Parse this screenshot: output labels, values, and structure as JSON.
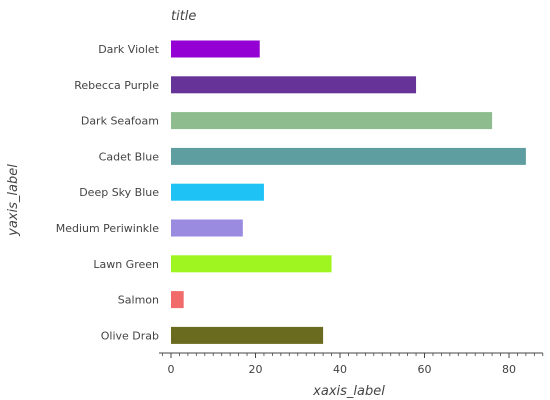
{
  "chart_data": {
    "type": "bar",
    "orientation": "horizontal",
    "title": "title",
    "xlabel": "xaxis_label",
    "ylabel": "yaxis_label",
    "xlim": [
      0,
      88
    ],
    "xticks": [
      0,
      20,
      40,
      60,
      80
    ],
    "grid": false,
    "legend": "none",
    "categories": [
      "Olive Drab",
      "Salmon",
      "Lawn Green",
      "Medium Periwinkle",
      "Deep Sky Blue",
      "Cadet Blue",
      "Dark Seafoam",
      "Rebecca Purple",
      "Dark Violet"
    ],
    "values": [
      36,
      3,
      38,
      17,
      22,
      84,
      76,
      58,
      21
    ],
    "colors": [
      "#6b6b1f",
      "#f26b6b",
      "#9ef51f",
      "#9a8ae0",
      "#1fc2f5",
      "#5f9ea0",
      "#8fbc8f",
      "#663399",
      "#9400d3"
    ]
  }
}
